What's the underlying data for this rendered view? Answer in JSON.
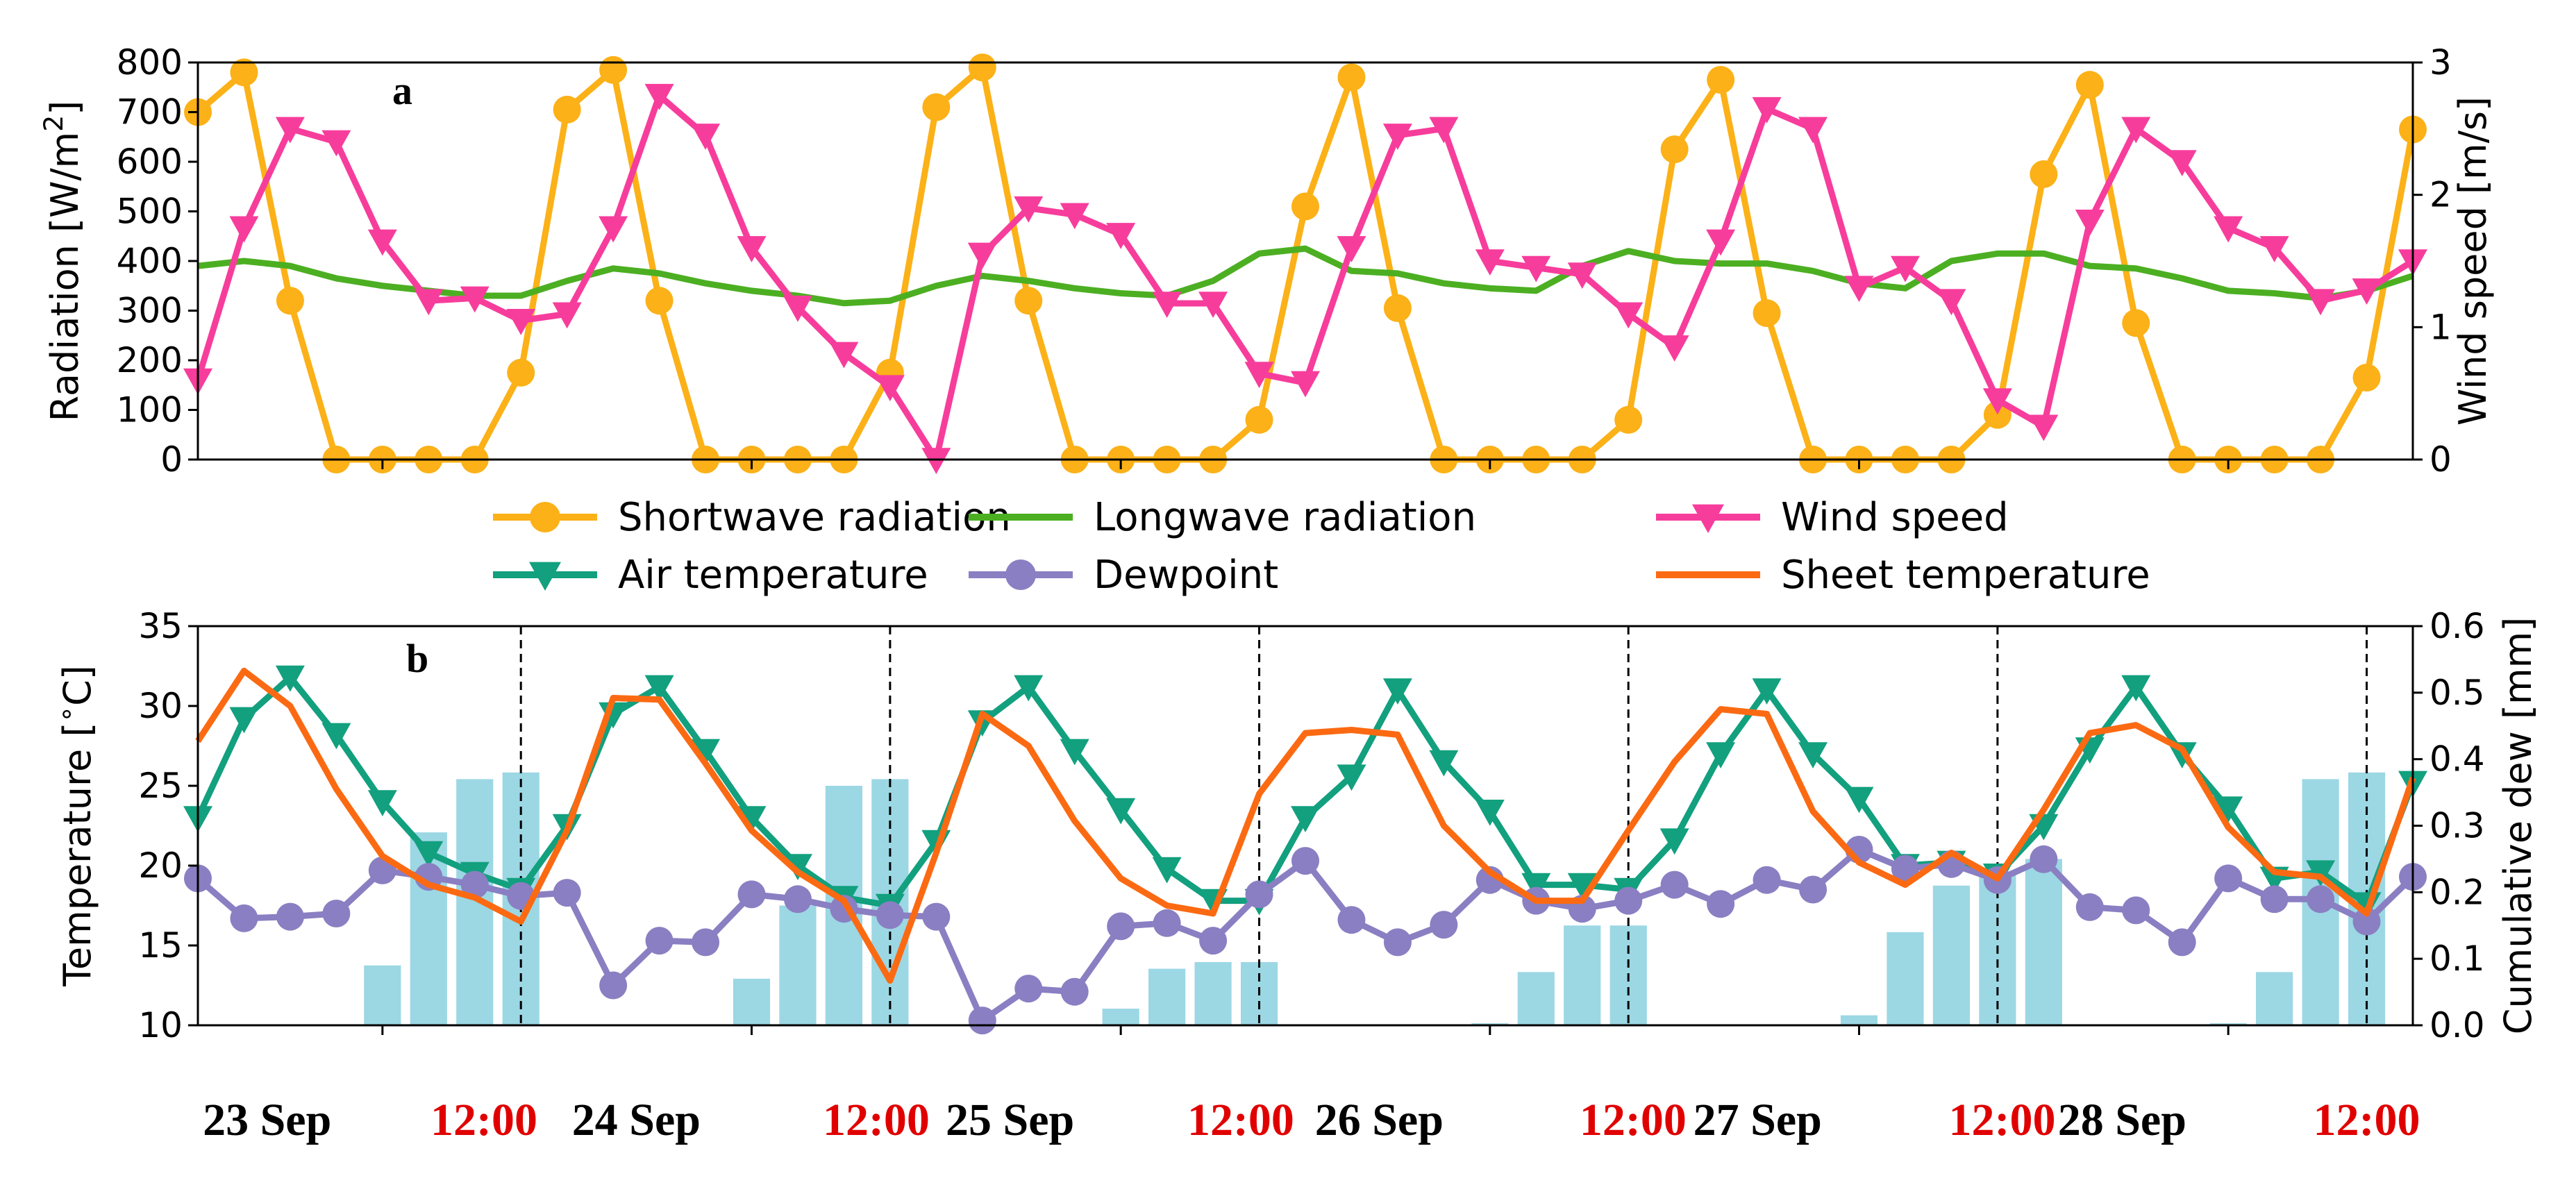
{
  "chart_data": [
    {
      "id": "a",
      "type": "line",
      "panel_label": "a",
      "x": [
        0,
        1,
        2,
        3,
        4,
        5,
        6,
        7,
        8,
        9,
        10,
        11,
        12,
        13,
        14,
        15,
        16,
        17,
        18,
        19,
        20,
        21,
        22,
        23,
        24,
        25,
        26,
        27,
        28,
        29,
        30,
        31,
        32,
        33,
        34,
        35,
        36,
        37,
        38,
        39,
        40,
        41,
        42,
        43,
        44,
        45,
        46,
        47,
        48
      ],
      "xlim": [
        0,
        48
      ],
      "ylabel_left": "Radiation [W/m$^2$]",
      "ylim_left": [
        0,
        800
      ],
      "yticks_left": [
        0,
        100,
        200,
        300,
        400,
        500,
        600,
        700,
        800
      ],
      "ylabel_right": "Wind speed [m/s]",
      "ylim_right": [
        0,
        3
      ],
      "yticks_right": [
        0,
        1,
        2,
        3
      ],
      "series": [
        {
          "name": "Shortwave radiation",
          "axis": "left",
          "color": "#fbb117",
          "marker": "circle",
          "values": [
            700,
            780,
            320,
            0,
            0,
            0,
            0,
            175,
            705,
            785,
            320,
            0,
            0,
            0,
            0,
            175,
            710,
            790,
            320,
            0,
            0,
            0,
            0,
            80,
            510,
            770,
            305,
            0,
            0,
            0,
            0,
            80,
            625,
            765,
            295,
            0,
            0,
            0,
            0,
            90,
            575,
            755,
            275,
            0,
            0,
            0,
            0,
            165,
            665
          ]
        },
        {
          "name": "Longwave radiation",
          "axis": "left",
          "color": "#4caf22",
          "marker": "none",
          "values": [
            390,
            400,
            390,
            365,
            350,
            340,
            330,
            330,
            360,
            385,
            375,
            355,
            340,
            330,
            315,
            320,
            350,
            370,
            360,
            345,
            335,
            330,
            360,
            415,
            425,
            380,
            375,
            355,
            345,
            340,
            390,
            420,
            400,
            395,
            395,
            380,
            355,
            345,
            400,
            415,
            415,
            390,
            385,
            365,
            340,
            335,
            325,
            340,
            370
          ]
        },
        {
          "name": "Wind speed",
          "axis": "right",
          "color": "#f73d9c",
          "marker": "triangle-down",
          "values": [
            0.6,
            1.75,
            2.5,
            2.4,
            1.65,
            1.2,
            1.22,
            1.05,
            1.1,
            1.75,
            2.75,
            2.45,
            1.6,
            1.15,
            0.8,
            0.55,
            0.0,
            1.55,
            1.9,
            1.85,
            1.7,
            1.18,
            1.18,
            0.65,
            0.58,
            1.6,
            2.45,
            2.5,
            1.5,
            1.45,
            1.4,
            1.1,
            0.85,
            1.65,
            2.65,
            2.5,
            1.3,
            1.45,
            1.2,
            0.45,
            0.25,
            1.8,
            2.5,
            2.25,
            1.75,
            1.6,
            1.2,
            1.28,
            1.5
          ]
        }
      ]
    },
    {
      "id": "b",
      "type": "line",
      "panel_label": "b",
      "x": [
        0,
        1,
        2,
        3,
        4,
        5,
        6,
        7,
        8,
        9,
        10,
        11,
        12,
        13,
        14,
        15,
        16,
        17,
        18,
        19,
        20,
        21,
        22,
        23,
        24,
        25,
        26,
        27,
        28,
        29,
        30,
        31,
        32,
        33,
        34,
        35,
        36,
        37,
        38,
        39,
        40,
        41,
        42,
        43,
        44,
        45,
        46,
        47,
        48
      ],
      "xlim": [
        0,
        48
      ],
      "ylabel_left": "Temperature [$^\\circ$C]",
      "ylim_left": [
        10,
        35
      ],
      "yticks_left": [
        10,
        15,
        20,
        25,
        30,
        35
      ],
      "ylabel_right": "Cumulative dew [mm]",
      "ylim_right": [
        0.0,
        0.6
      ],
      "yticks_right": [
        "0.0",
        "0.1",
        "0.2",
        "0.3",
        "0.4",
        "0.5",
        "0.6"
      ],
      "series": [
        {
          "name": "Air temperature",
          "axis": "left",
          "color": "#12a07e",
          "marker": "triangle-down",
          "values": [
            23,
            29.2,
            31.8,
            28.2,
            24,
            20.8,
            19.5,
            18.5,
            22.5,
            29.5,
            31.2,
            27.2,
            23,
            20,
            18,
            17.5,
            21.5,
            29,
            31.2,
            27.2,
            23.5,
            19.8,
            17.8,
            17.8,
            23,
            25.6,
            31,
            26.5,
            23.4,
            18.8,
            18.8,
            18.5,
            21.6,
            27,
            31,
            27,
            24.2,
            20,
            20.2,
            19.4,
            22.5,
            27.3,
            31.2,
            27,
            23.6,
            19.2,
            19.6,
            17.6,
            25.2
          ]
        },
        {
          "name": "Dewpoint",
          "axis": "left",
          "color": "#8a7fc2",
          "marker": "circle",
          "values": [
            19.2,
            16.7,
            16.8,
            17,
            19.7,
            19.3,
            18.8,
            18.1,
            18.3,
            12.5,
            15.3,
            15.2,
            18.2,
            17.9,
            17.3,
            16.9,
            16.8,
            10.3,
            12.3,
            12.1,
            16.2,
            16.4,
            15.3,
            18.2,
            20.3,
            16.6,
            15.2,
            16.3,
            19.1,
            17.8,
            17.3,
            17.8,
            18.8,
            17.6,
            19.1,
            18.5,
            21,
            19.8,
            20.1,
            19.1,
            20.4,
            17.4,
            17.2,
            15.2,
            19.2,
            17.9,
            17.9,
            16.5,
            19.3
          ]
        },
        {
          "name": "Sheet temperature",
          "axis": "left",
          "color": "#fb6a12",
          "marker": "none",
          "values": [
            27.8,
            32.2,
            30,
            24.8,
            20.6,
            18.8,
            18,
            16.5,
            22.2,
            30.5,
            30.4,
            26.4,
            22.2,
            19.6,
            17.8,
            12.8,
            20.8,
            29.5,
            27.5,
            22.8,
            19.2,
            17.5,
            17,
            24.5,
            28.3,
            28.5,
            28.2,
            22.5,
            19.6,
            17.8,
            17.8,
            22.2,
            26.5,
            29.8,
            29.5,
            23.4,
            20.2,
            18.8,
            20.8,
            19.2,
            23.5,
            28.3,
            28.8,
            27.3,
            22.4,
            19.6,
            19.3,
            17,
            25.5
          ]
        },
        {
          "name": "Cumulative dew",
          "axis": "right",
          "color": "#9cd7e4",
          "marker": "bar",
          "bars": [
            {
              "x": 4,
              "value": 0.09
            },
            {
              "x": 5,
              "value": 0.29
            },
            {
              "x": 6,
              "value": 0.37
            },
            {
              "x": 7,
              "value": 0.38
            },
            {
              "x": 12,
              "value": 0.07
            },
            {
              "x": 13,
              "value": 0.18
            },
            {
              "x": 14,
              "value": 0.36
            },
            {
              "x": 15,
              "value": 0.37
            },
            {
              "x": 20,
              "value": 0.025
            },
            {
              "x": 21,
              "value": 0.085
            },
            {
              "x": 22,
              "value": 0.095
            },
            {
              "x": 23,
              "value": 0.095
            },
            {
              "x": 28,
              "value": 0.003
            },
            {
              "x": 29,
              "value": 0.08
            },
            {
              "x": 30,
              "value": 0.15
            },
            {
              "x": 31,
              "value": 0.15
            },
            {
              "x": 36,
              "value": 0.015
            },
            {
              "x": 37,
              "value": 0.14
            },
            {
              "x": 38,
              "value": 0.21
            },
            {
              "x": 39,
              "value": 0.23
            },
            {
              "x": 40,
              "value": 0.25
            },
            {
              "x": 44,
              "value": 0.003
            },
            {
              "x": 45,
              "value": 0.08
            },
            {
              "x": 46,
              "value": 0.37
            },
            {
              "x": 47,
              "value": 0.38
            }
          ]
        }
      ],
      "vlines_x": [
        7,
        15,
        23,
        31,
        39,
        47
      ]
    }
  ],
  "legend": [
    {
      "label": "Shortwave radiation",
      "color": "#fbb117",
      "marker": "circle"
    },
    {
      "label": "Longwave radiation",
      "color": "#4caf22",
      "marker": "none"
    },
    {
      "label": "Wind speed",
      "color": "#f73d9c",
      "marker": "triangle-down"
    },
    {
      "label": "Air temperature",
      "color": "#12a07e",
      "marker": "triangle-down"
    },
    {
      "label": "Dewpoint",
      "color": "#8a7fc2",
      "marker": "circle"
    },
    {
      "label": "Sheet temperature",
      "color": "#fb6a12",
      "marker": "none"
    }
  ],
  "date_labels": [
    {
      "text": "23 Sep",
      "x": 1.5,
      "kind": "date"
    },
    {
      "text": "12:00",
      "x": 6.2,
      "kind": "time"
    },
    {
      "text": "24 Sep",
      "x": 9.5,
      "kind": "date"
    },
    {
      "text": "12:00",
      "x": 14.7,
      "kind": "time"
    },
    {
      "text": "25 Sep",
      "x": 17.6,
      "kind": "date"
    },
    {
      "text": "12:00",
      "x": 22.6,
      "kind": "time"
    },
    {
      "text": "26 Sep",
      "x": 25.6,
      "kind": "date"
    },
    {
      "text": "12:00",
      "x": 31.1,
      "kind": "time"
    },
    {
      "text": "27 Sep",
      "x": 33.8,
      "kind": "date"
    },
    {
      "text": "12:00",
      "x": 39.1,
      "kind": "time"
    },
    {
      "text": "28 Sep",
      "x": 41.7,
      "kind": "date"
    },
    {
      "text": "12:00",
      "x": 47,
      "kind": "time"
    }
  ]
}
